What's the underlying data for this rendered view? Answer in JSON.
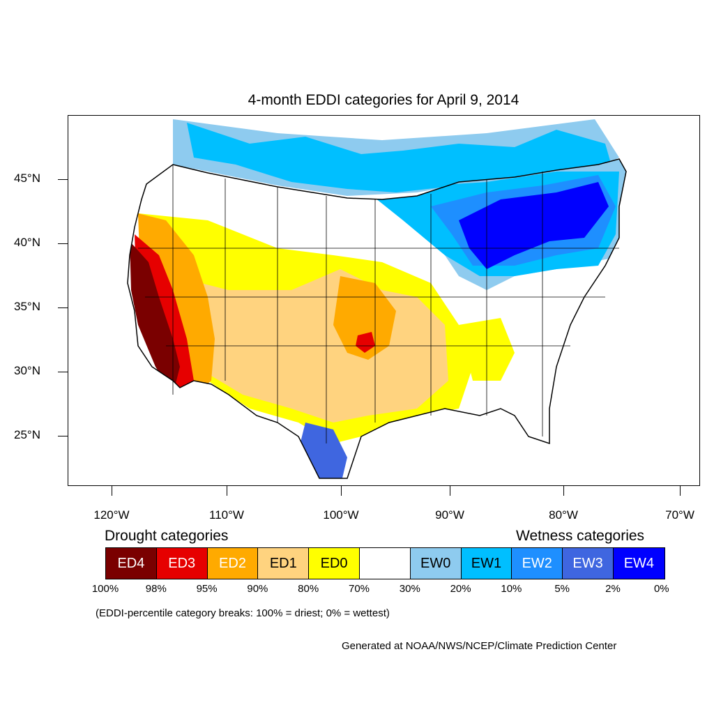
{
  "title": "4-month EDDI categories for April 9, 2014",
  "map": {
    "latitude_labels": [
      "45°N",
      "40°N",
      "35°N",
      "30°N",
      "25°N"
    ],
    "longitude_labels": [
      "120°W",
      "110°W",
      "100°W",
      "90°W",
      "80°W",
      "70°W"
    ],
    "colors": {
      "ED4": "#7a0000",
      "ED3": "#e60000",
      "ED2": "#ffaa00",
      "ED1": "#ffd37f",
      "ED0": "#ffff00",
      "neutral": "#ffffff",
      "EW0": "#8ecbef",
      "EW1": "#00bfff",
      "EW2": "#1e8fff",
      "EW3": "#3f66e0",
      "EW4": "#0000ff"
    }
  },
  "legend": {
    "drought_heading": "Drought categories",
    "wetness_heading": "Wetness categories",
    "categories": [
      {
        "label": "ED4",
        "color": "#7a0000",
        "text_color": "#ffffff"
      },
      {
        "label": "ED3",
        "color": "#e60000",
        "text_color": "#ffffff"
      },
      {
        "label": "ED2",
        "color": "#ffaa00",
        "text_color": "#ffffff"
      },
      {
        "label": "ED1",
        "color": "#ffd37f",
        "text_color": "#000000"
      },
      {
        "label": "ED0",
        "color": "#ffff00",
        "text_color": "#000000"
      },
      {
        "label": "",
        "color": "#ffffff",
        "text_color": "#000000"
      },
      {
        "label": "EW0",
        "color": "#8ecbef",
        "text_color": "#000000"
      },
      {
        "label": "EW1",
        "color": "#00bfff",
        "text_color": "#000000"
      },
      {
        "label": "EW2",
        "color": "#1e8fff",
        "text_color": "#ffffff"
      },
      {
        "label": "EW3",
        "color": "#3f66e0",
        "text_color": "#ffffff"
      },
      {
        "label": "EW4",
        "color": "#0000ff",
        "text_color": "#ffffff"
      }
    ],
    "breaks": [
      "100%",
      "98%",
      "95%",
      "90%",
      "80%",
      "70%",
      "30%",
      "20%",
      "10%",
      "5%",
      "2%",
      "0%"
    ],
    "note": "(EDDI-percentile category breaks: 100% = driest; 0% = wettest)"
  },
  "credit": "Generated at NOAA/NWS/NCEP/Climate Prediction Center"
}
